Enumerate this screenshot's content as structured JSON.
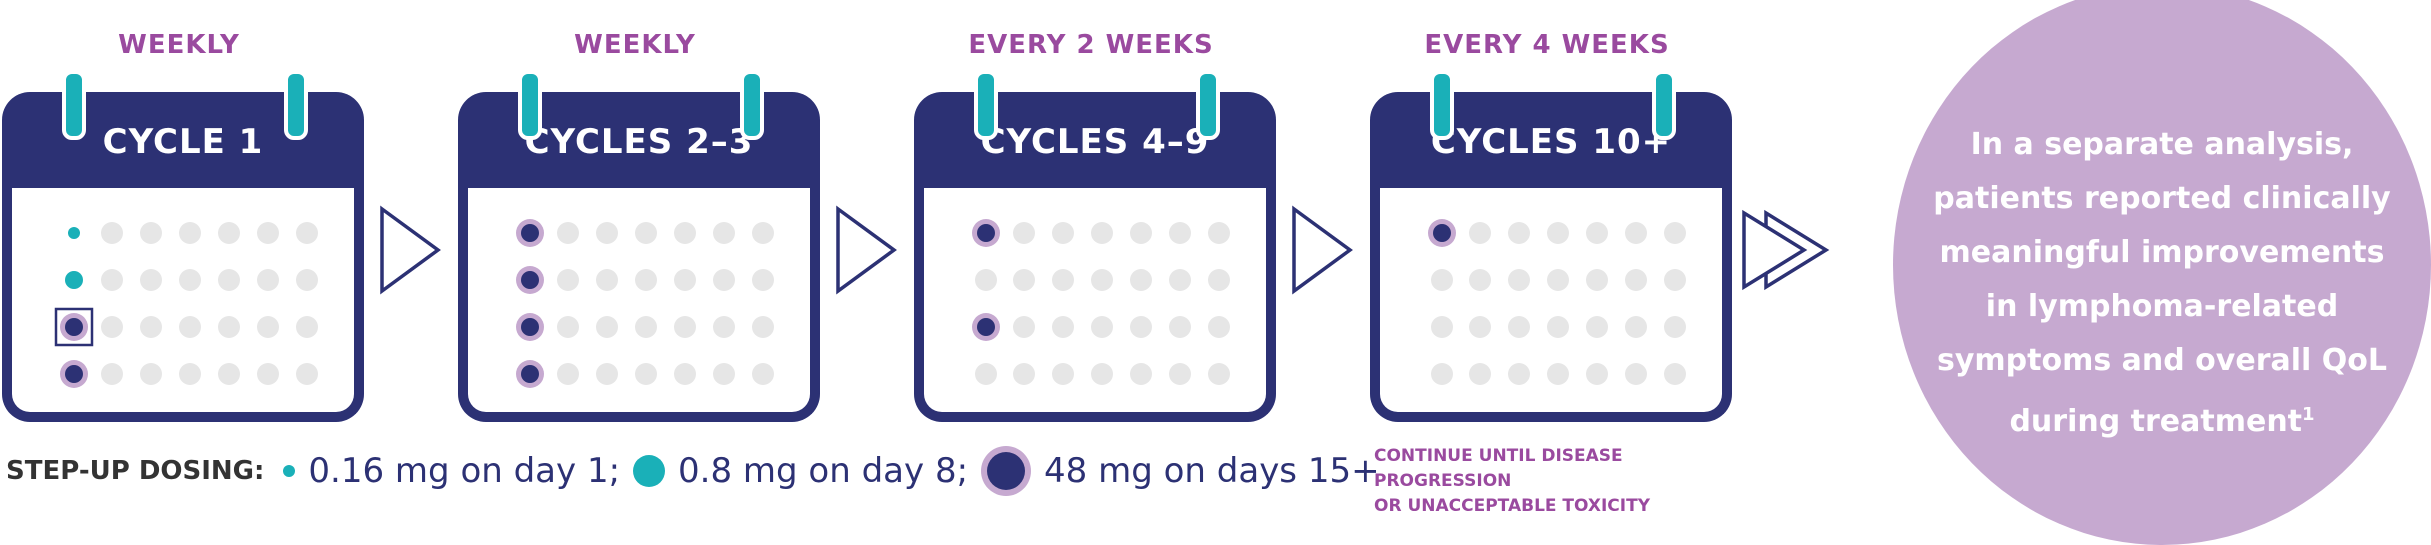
{
  "calendars": [
    {
      "frequency": "WEEKLY",
      "title": "CYCLE 1"
    },
    {
      "frequency": "WEEKLY",
      "title": "CYCLES 2–3"
    },
    {
      "frequency": "EVERY 2 WEEKS",
      "title": "CYCLES 4–9"
    },
    {
      "frequency": "EVERY 4 WEEKS",
      "title": "CYCLES 10+"
    }
  ],
  "legend": {
    "label": "STEP-UP DOSING:",
    "dose_1": "0.16 mg on day 1;",
    "dose_2": "0.8 mg on day 8;",
    "dose_3": "48 mg on days 15+"
  },
  "note": {
    "line1": "CONTINUE UNTIL DISEASE PROGRESSION",
    "line2": "OR UNACCEPTABLE TOXICITY"
  },
  "callout": {
    "text": "In a separate analysis, patients reported clinically meaningful improvements in lymphoma-related symptoms and overall QoL during treatment",
    "superscript": "1"
  },
  "colors": {
    "navy": "#2c3174",
    "teal": "#1ab0b8",
    "purple": "#9a4a9f",
    "lavender": "#c6a9d0",
    "gray_dot": "#e6e6e6"
  },
  "icons": [
    "calendar-icon",
    "chevron-right-icon",
    "double-chevron-right-icon",
    "dose-dot-icon"
  ]
}
